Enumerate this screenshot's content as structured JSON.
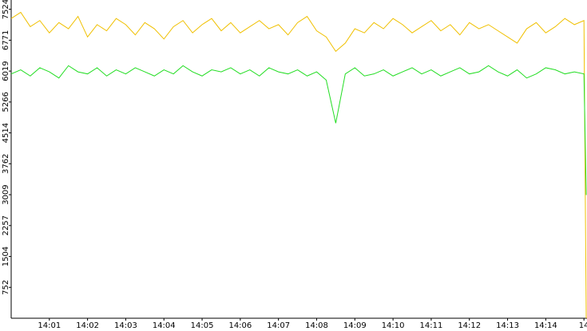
{
  "chart_data": {
    "type": "line",
    "x": [
      0,
      0.25,
      0.5,
      0.75,
      1,
      1.25,
      1.5,
      1.75,
      2,
      2.25,
      2.5,
      2.75,
      3,
      3.25,
      3.5,
      3.75,
      4,
      4.25,
      4.5,
      4.75,
      5,
      5.25,
      5.5,
      5.75,
      6,
      6.25,
      6.5,
      6.75,
      7,
      7.25,
      7.5,
      7.75,
      8,
      8.25,
      8.5,
      8.75,
      9,
      9.25,
      9.5,
      9.75,
      10,
      10.25,
      10.5,
      10.75,
      11,
      11.25,
      11.5,
      11.75,
      12,
      12.25,
      12.5,
      12.75,
      13,
      13.25,
      13.5,
      13.75,
      14,
      14.25,
      14.5,
      14.75,
      15,
      15.06
    ],
    "series": [
      {
        "color": "#f0c000",
        "values": [
          7300,
          7450,
          7100,
          7250,
          6950,
          7200,
          7050,
          7350,
          6850,
          7150,
          7000,
          7300,
          7150,
          6900,
          7200,
          7050,
          6800,
          7100,
          7250,
          6950,
          7150,
          7300,
          7000,
          7200,
          6950,
          7100,
          7250,
          7050,
          7150,
          6900,
          7200,
          7350,
          7000,
          6850,
          6500,
          6700,
          7050,
          6950,
          7200,
          7050,
          7300,
          7150,
          6950,
          7100,
          7250,
          7000,
          7150,
          6900,
          7200,
          7050,
          7150,
          7000,
          6850,
          6700,
          7050,
          7200,
          6950,
          7100,
          7300,
          7150,
          7250,
          0
        ]
      },
      {
        "color": "#22dd22",
        "values": [
          5950,
          6050,
          5900,
          6100,
          6000,
          5850,
          6150,
          6000,
          5950,
          6100,
          5900,
          6050,
          5950,
          6100,
          6000,
          5900,
          6050,
          5950,
          6150,
          6000,
          5900,
          6050,
          6000,
          6100,
          5950,
          6050,
          5900,
          6100,
          6000,
          5950,
          6050,
          5900,
          6000,
          5800,
          4750,
          5950,
          6100,
          5900,
          5950,
          6050,
          5900,
          6000,
          6100,
          5950,
          6050,
          5900,
          6000,
          6100,
          5950,
          6000,
          6150,
          6000,
          5900,
          6050,
          5850,
          5950,
          6100,
          6050,
          5950,
          6000,
          5950,
          3000
        ]
      }
    ],
    "xlim": [
      0,
      15.08
    ],
    "xticks": [
      {
        "value": 1,
        "label": "14:01"
      },
      {
        "value": 2,
        "label": "14:02"
      },
      {
        "value": 3,
        "label": "14:03"
      },
      {
        "value": 4,
        "label": "14:04"
      },
      {
        "value": 5,
        "label": "14:05"
      },
      {
        "value": 6,
        "label": "14:06"
      },
      {
        "value": 7,
        "label": "14:07"
      },
      {
        "value": 8,
        "label": "14:08"
      },
      {
        "value": 9,
        "label": "14:09"
      },
      {
        "value": 10,
        "label": "14:10"
      },
      {
        "value": 11,
        "label": "14:11"
      },
      {
        "value": 12,
        "label": "14:12"
      },
      {
        "value": 13,
        "label": "14:13"
      },
      {
        "value": 14,
        "label": "14:14"
      },
      {
        "value": 15,
        "label": "14"
      }
    ],
    "ylim": [
      0,
      7750
    ],
    "yticks": [
      752,
      1504,
      2257,
      3009,
      3762,
      4514,
      5266,
      6019,
      6771,
      7524
    ]
  }
}
